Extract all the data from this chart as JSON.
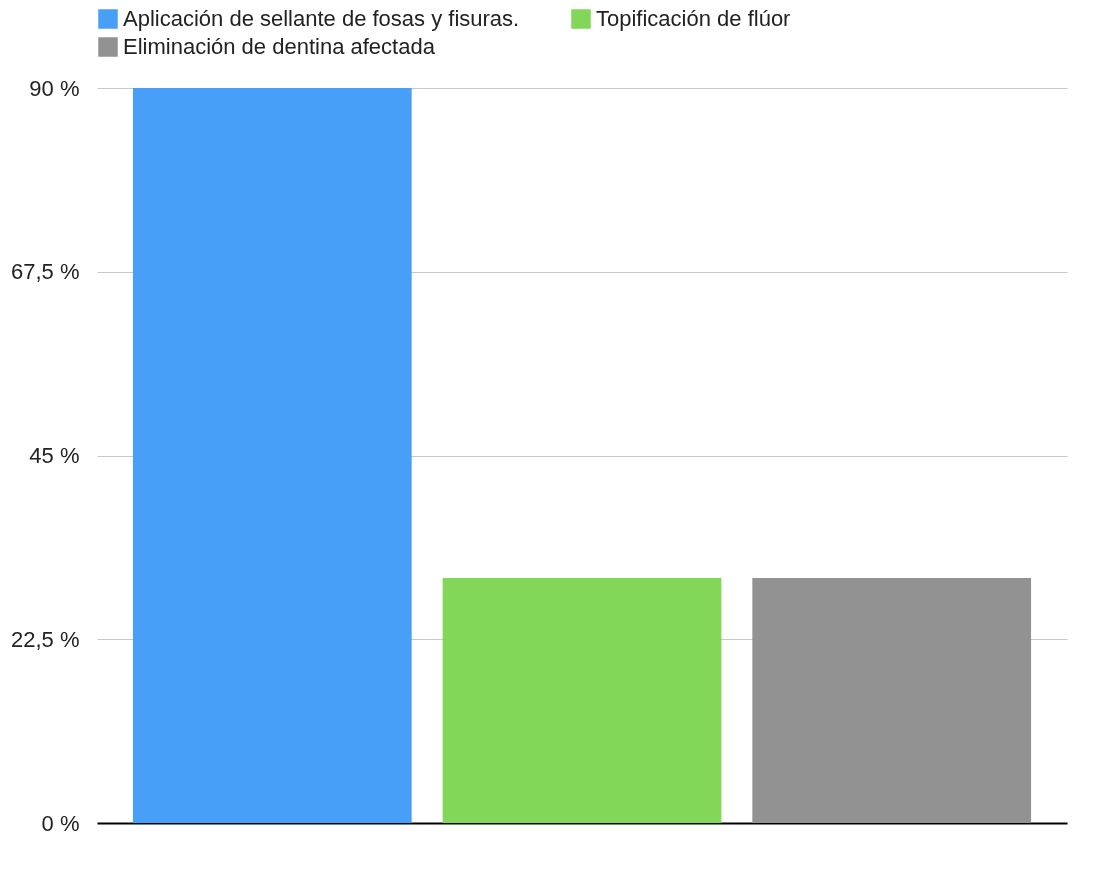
{
  "chart_data": {
    "type": "bar",
    "categories": [
      null
    ],
    "series": [
      {
        "name": "Aplicación de sellante de fosas y fisuras.",
        "color": "#479ff8",
        "values": [
          90
        ]
      },
      {
        "name": "Topificación de flúor",
        "color": "#83d758",
        "values": [
          30
        ]
      },
      {
        "name": "Eliminación de dentina afectada",
        "color": "#929292",
        "values": [
          30
        ]
      }
    ],
    "ylim": [
      0,
      90
    ],
    "yticks": [
      {
        "value": 0,
        "label": "0 %"
      },
      {
        "value": 22.5,
        "label": "22,5 %"
      },
      {
        "value": 45,
        "label": "45 %"
      },
      {
        "value": 67.5,
        "label": "67,5 %"
      },
      {
        "value": 90,
        "label": "90 %"
      }
    ],
    "grid": "y",
    "legend": "top",
    "tick_labels": "y"
  }
}
